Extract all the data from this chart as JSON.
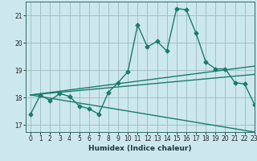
{
  "title": "",
  "xlabel": "Humidex (Indice chaleur)",
  "bg_color": "#cce8ee",
  "grid_color": "#99bbbb",
  "line_color": "#1a7a6e",
  "xlim": [
    -0.5,
    23
  ],
  "ylim": [
    16.75,
    21.5
  ],
  "yticks": [
    17,
    18,
    19,
    20,
    21
  ],
  "xticks": [
    0,
    1,
    2,
    3,
    4,
    5,
    6,
    7,
    8,
    9,
    10,
    11,
    12,
    13,
    14,
    15,
    16,
    17,
    18,
    19,
    20,
    21,
    22,
    23
  ],
  "series1_x": [
    0,
    1,
    2,
    3,
    4,
    5,
    6,
    7,
    8,
    9,
    10,
    11,
    12,
    13,
    14,
    15,
    16,
    17,
    18,
    19,
    20,
    21,
    22,
    23
  ],
  "series1_y": [
    17.4,
    18.1,
    17.9,
    18.15,
    18.05,
    17.7,
    17.6,
    17.4,
    18.2,
    18.55,
    18.95,
    20.65,
    19.85,
    20.05,
    19.7,
    21.25,
    21.2,
    20.35,
    19.3,
    19.05,
    19.05,
    18.55,
    18.5,
    17.75
  ],
  "series2_x": [
    0,
    23
  ],
  "series2_y": [
    18.1,
    19.15
  ],
  "series3_x": [
    0,
    23
  ],
  "series3_y": [
    18.1,
    18.85
  ],
  "series4_x": [
    0,
    23
  ],
  "series4_y": [
    18.1,
    16.75
  ],
  "marker": "D",
  "markersize": 2.5,
  "linewidth": 1.0
}
